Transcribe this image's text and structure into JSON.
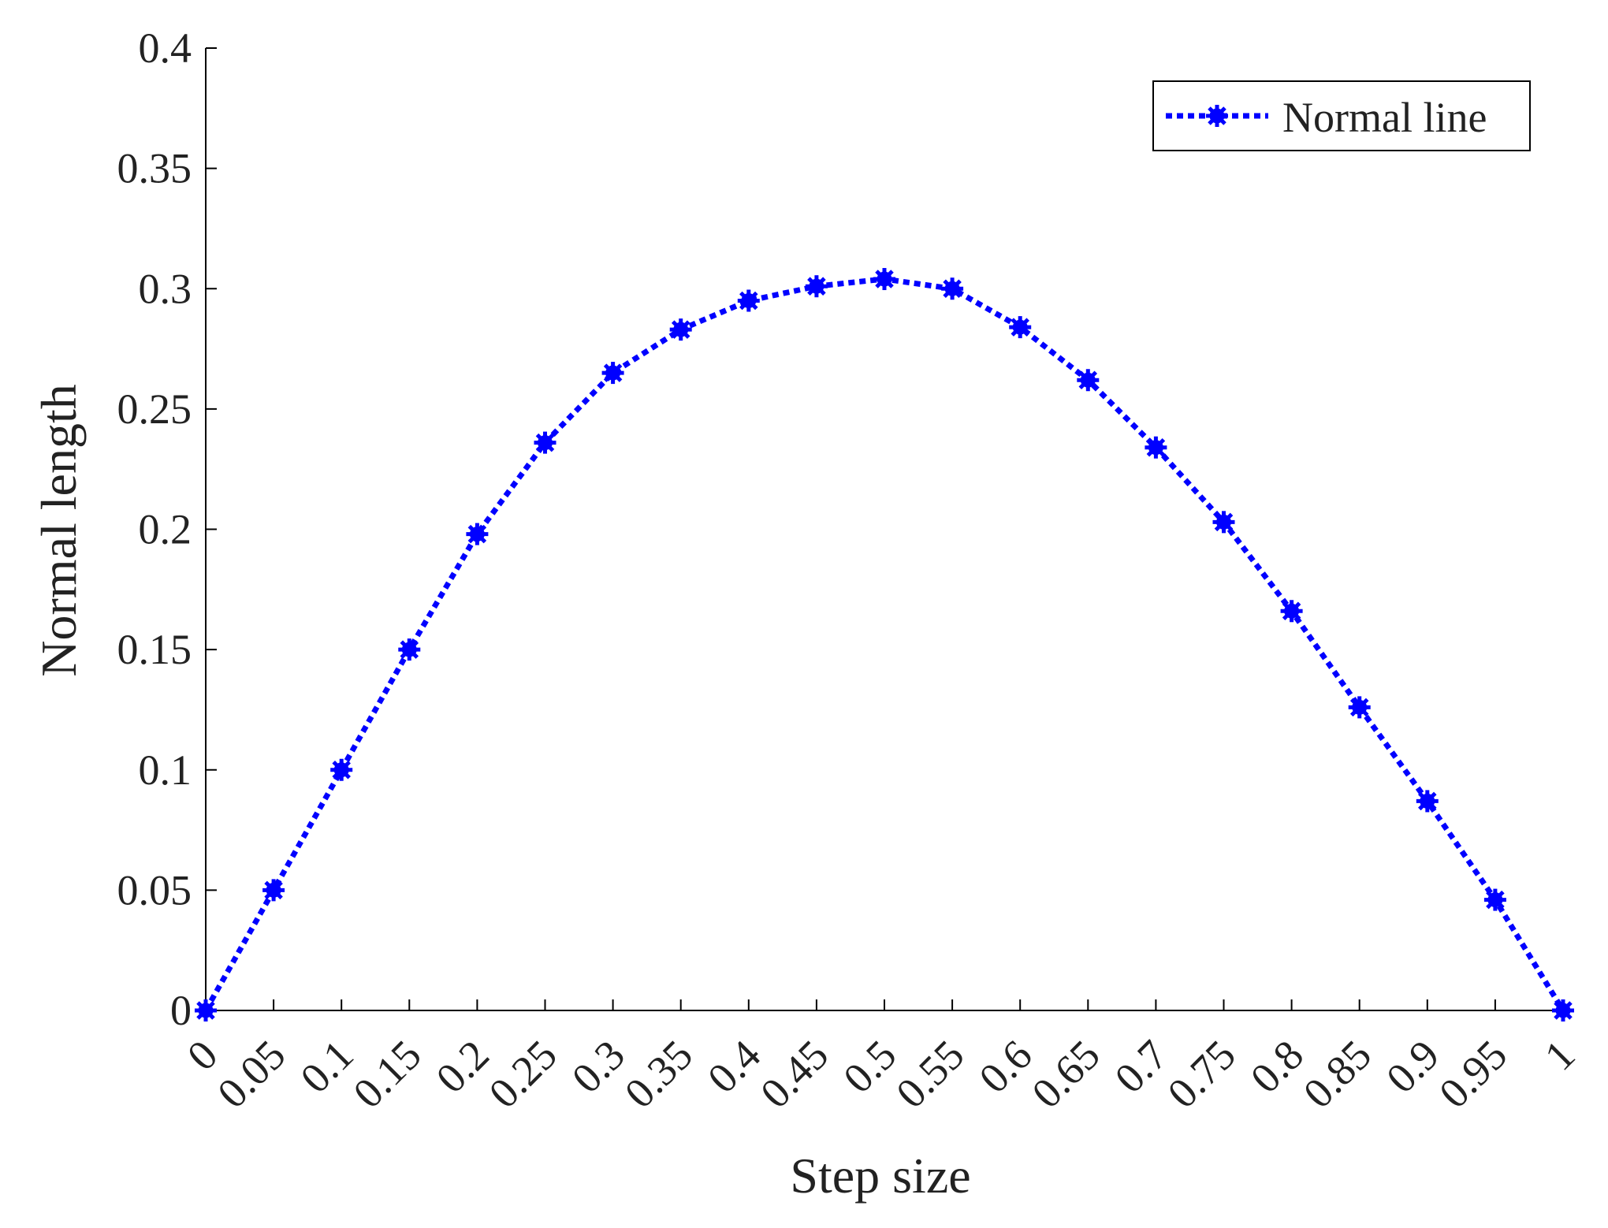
{
  "chart_data": {
    "type": "line",
    "xlabel": "Step size",
    "ylabel": "Normal length",
    "xlim": [
      0,
      1
    ],
    "ylim": [
      0,
      0.4
    ],
    "grid": false,
    "legend_position": "top-right",
    "x_ticks": [
      "0",
      "0.05",
      "0.1",
      "0.15",
      "0.2",
      "0.25",
      "0.3",
      "0.35",
      "0.4",
      "0.45",
      "0.5",
      "0.55",
      "0.6",
      "0.65",
      "0.7",
      "0.75",
      "0.8",
      "0.85",
      "0.9",
      "0.95",
      "1"
    ],
    "y_ticks": [
      "0",
      "0.05",
      "0.1",
      "0.15",
      "0.2",
      "0.25",
      "0.3",
      "0.35",
      "0.4"
    ],
    "x": [
      0,
      0.05,
      0.1,
      0.15,
      0.2,
      0.25,
      0.3,
      0.35,
      0.4,
      0.45,
      0.5,
      0.55,
      0.6,
      0.65,
      0.7,
      0.75,
      0.8,
      0.85,
      0.9,
      0.95,
      1
    ],
    "series": [
      {
        "name": "Normal line",
        "color": "#0000ff",
        "line_style": "dotted",
        "marker": "asterisk",
        "values": [
          0,
          0.05,
          0.1,
          0.15,
          0.198,
          0.236,
          0.265,
          0.283,
          0.295,
          0.301,
          0.304,
          0.3,
          0.284,
          0.262,
          0.234,
          0.203,
          0.166,
          0.126,
          0.087,
          0.046,
          0
        ]
      }
    ]
  }
}
